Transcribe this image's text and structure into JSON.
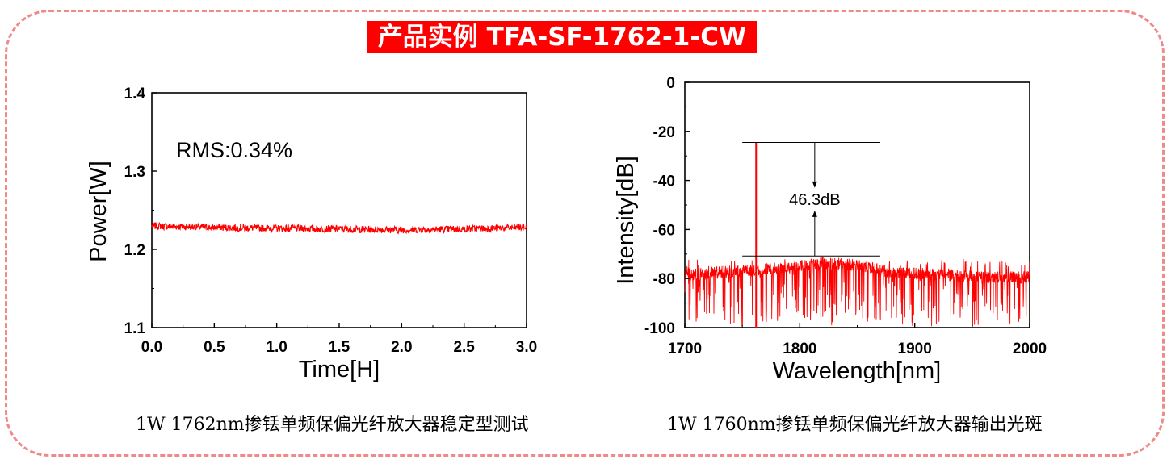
{
  "banner": {
    "title": "产品实例 TFA-SF-1762-1-CW"
  },
  "captions": {
    "left": "1W 1762nm掺铥单频保偏光纤放大器稳定型测试",
    "right": "1W 1760nm掺铥单频保偏光纤放大器输出光斑"
  },
  "colors": {
    "series": "#ff0000",
    "frame": "#f08a8a",
    "banner_bg": "#ff0000"
  },
  "chart_data": [
    {
      "type": "line",
      "title": "",
      "xlabel": "Time[H]",
      "ylabel": "Power[W]",
      "xlim": [
        0,
        3.0
      ],
      "ylim": [
        1.1,
        1.4
      ],
      "xticks": [
        "0.0",
        "0.5",
        "1.0",
        "1.5",
        "2.0",
        "2.5",
        "3.0"
      ],
      "yticks": [
        "1.1",
        "1.2",
        "1.3",
        "1.4"
      ],
      "annotation": "RMS:0.34%",
      "series": [
        {
          "x": [
            0,
            0.5,
            1.0,
            1.5,
            2.0,
            2.5,
            3.0
          ],
          "y": [
            1.23,
            1.228,
            1.227,
            1.226,
            1.225,
            1.226,
            1.228
          ]
        }
      ]
    },
    {
      "type": "line",
      "title": "",
      "xlabel": "Wavelength[nm]",
      "ylabel": "Intensity[dB]",
      "xlim": [
        1700,
        2000
      ],
      "ylim": [
        -100,
        0
      ],
      "xticks": [
        "1700",
        "1800",
        "1900",
        "2000"
      ],
      "yticks": [
        "0",
        "-20",
        "-40",
        "-60",
        "-80",
        "-100"
      ],
      "annotation": "46.3dB",
      "peak": {
        "x": 1762,
        "y": -24.5
      },
      "noise_floor": {
        "y": -70.8
      },
      "series": [
        {
          "x": [
            1700,
            1730,
            1760,
            1762,
            1764,
            1790,
            1820,
            1850,
            1880,
            1920,
            1960,
            2000
          ],
          "y": [
            -76,
            -75,
            -74,
            -24.5,
            -74,
            -73,
            -71,
            -72,
            -75,
            -76,
            -77,
            -77
          ]
        }
      ]
    }
  ]
}
